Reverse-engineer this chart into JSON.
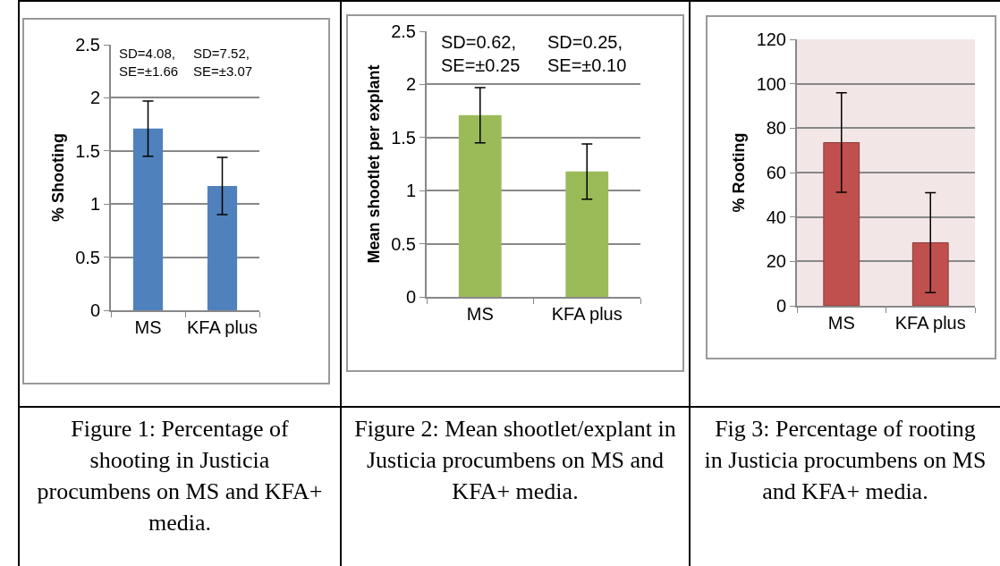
{
  "chart_data": [
    {
      "type": "bar",
      "title": "Figure 1: Percentage of shooting in Justicia procumbens on MS and KFA+ media.",
      "ylabel": "% Shooting",
      "categories": [
        "MS",
        "KFA plus"
      ],
      "values": [
        1.71,
        1.17
      ],
      "errors": [
        0.26,
        0.27
      ],
      "color": "#4f81bd",
      "ylim": [
        0,
        2.5
      ],
      "yticks": [
        0,
        0.5,
        1,
        1.5,
        2,
        2.5
      ],
      "grid": "y",
      "legend": false,
      "annotations": [
        "SD=4.08,\nSE=±1.66",
        "SD=7.52,\nSE=±3.07"
      ]
    },
    {
      "type": "bar",
      "title": "Figure 2: Mean shootlet/explant in Justicia procumbens on MS and KFA+ media.",
      "ylabel": "Mean shootlet per explant",
      "categories": [
        "MS",
        "KFA plus"
      ],
      "values": [
        1.71,
        1.18
      ],
      "errors": [
        0.26,
        0.26
      ],
      "color": "#9bbb59",
      "ylim": [
        0,
        2.5
      ],
      "yticks": [
        0,
        0.5,
        1,
        1.5,
        2,
        2.5
      ],
      "grid": "y",
      "legend": false,
      "annotations": [
        "SD=0.62,\nSE=±0.25",
        "SD=0.25,\nSE=±0.10"
      ]
    },
    {
      "type": "bar",
      "title": "Fig 3: Percentage of rooting in Justicia procumbens on MS and KFA+ media.",
      "ylabel": "% Rooting",
      "categories": [
        "MS",
        "KFA plus"
      ],
      "values": [
        73.5,
        28.4
      ],
      "errors": [
        22.4,
        22.5
      ],
      "color": "#c0504d",
      "ylim": [
        0,
        120
      ],
      "yticks": [
        0,
        20,
        40,
        60,
        80,
        100,
        120
      ],
      "grid": "y",
      "legend": false
    }
  ]
}
